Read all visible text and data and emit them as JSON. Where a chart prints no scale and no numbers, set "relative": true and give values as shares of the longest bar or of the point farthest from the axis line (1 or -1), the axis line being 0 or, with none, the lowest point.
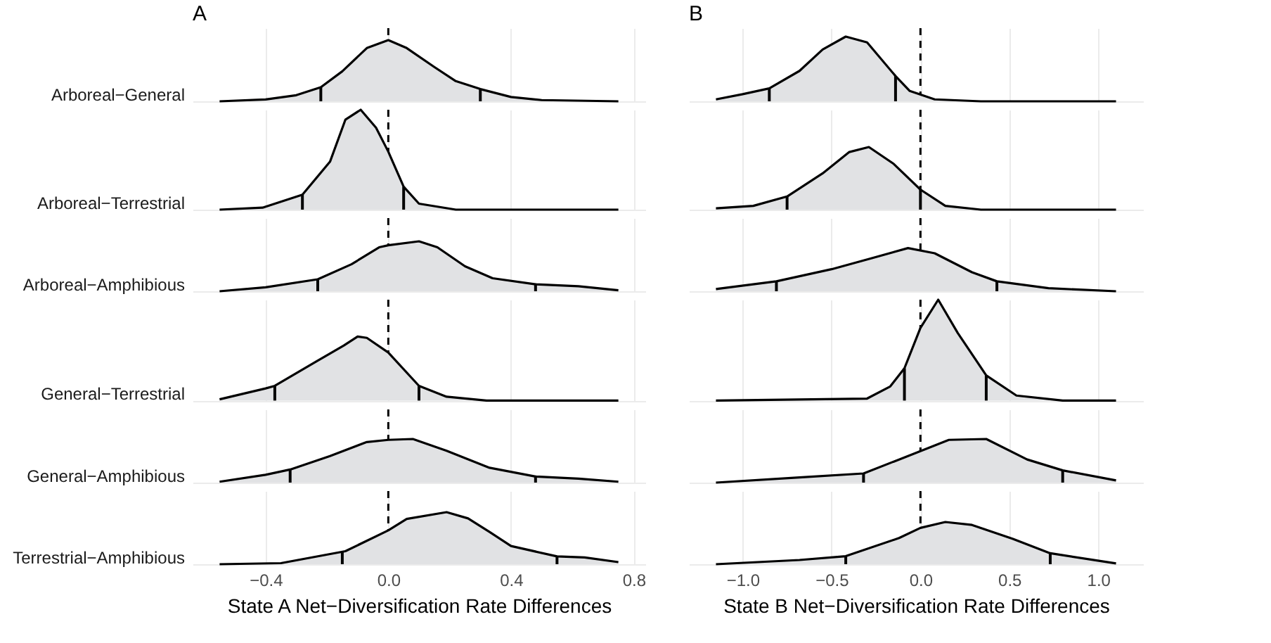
{
  "chart_data": [
    {
      "type": "area",
      "relative": true,
      "title": "A",
      "xlim": [
        -0.615,
        0.815
      ],
      "xticks": [
        -0.4,
        0,
        0.4,
        0.8
      ],
      "tick_labels": false,
      "grid": true,
      "legend": false,
      "ref_lines": [
        {
          "axis": "x",
          "value": 0,
          "label": null,
          "line_style": "dashed",
          "color": "#000000"
        }
      ],
      "series": [
        {
          "name": "Arboreal−General",
          "color": "#e1e2e4",
          "x": [
            -0.55,
            -0.4,
            -0.3,
            -0.22,
            -0.15,
            -0.07,
            0,
            0.06,
            0.15,
            0.22,
            0.3,
            0.4,
            0.5,
            0.75
          ],
          "values": [
            0,
            0.03,
            0.1,
            0.23,
            0.49,
            0.87,
            1,
            0.87,
            0.56,
            0.33,
            0.2,
            0.07,
            0.02,
            0
          ]
        },
        {
          "type": "bar",
          "color": "#000000",
          "x": [
            -0.22,
            0.3
          ],
          "values": [
            0.23,
            0.2
          ]
        }
      ]
    },
    {
      "type": "area",
      "relative": true,
      "xlim": [
        -0.615,
        0.815
      ],
      "xticks": [
        -0.4,
        0,
        0.4,
        0.8
      ],
      "tick_labels": false,
      "grid": true,
      "legend": false,
      "ref_lines": [
        {
          "axis": "x",
          "value": 0,
          "label": null,
          "line_style": "dashed",
          "color": "#000000"
        }
      ],
      "series": [
        {
          "name": "Arboreal−Terrestrial",
          "color": "#e1e2e4",
          "x": [
            -0.55,
            -0.41,
            -0.28,
            -0.19,
            -0.14,
            -0.09,
            -0.04,
            0,
            0.05,
            0.1,
            0.22,
            0.75
          ],
          "values": [
            0,
            0.02,
            0.15,
            0.48,
            0.9,
            1,
            0.82,
            0.58,
            0.23,
            0.06,
            0,
            0
          ]
        },
        {
          "type": "bar",
          "color": "#000000",
          "x": [
            -0.28,
            0.05
          ],
          "values": [
            0.15,
            0.23
          ]
        }
      ]
    },
    {
      "type": "area",
      "relative": true,
      "xlim": [
        -0.615,
        0.815
      ],
      "xticks": [
        -0.4,
        0,
        0.4,
        0.8
      ],
      "tick_labels": false,
      "grid": true,
      "legend": false,
      "ref_lines": [
        {
          "axis": "x",
          "value": 0,
          "label": null,
          "line_style": "dashed",
          "color": "#000000"
        }
      ],
      "series": [
        {
          "name": "Arboreal−Amphibious",
          "color": "#e1e2e4",
          "x": [
            -0.55,
            -0.4,
            -0.23,
            -0.12,
            -0.03,
            0,
            0.1,
            0.16,
            0.25,
            0.34,
            0.48,
            0.62,
            0.75
          ],
          "values": [
            0,
            0.08,
            0.24,
            0.54,
            0.88,
            0.92,
            1,
            0.88,
            0.5,
            0.26,
            0.14,
            0.1,
            0.02
          ]
        },
        {
          "type": "bar",
          "color": "#000000",
          "x": [
            -0.23,
            0.48
          ],
          "values": [
            0.24,
            0.14
          ]
        }
      ]
    },
    {
      "type": "area",
      "relative": true,
      "xlim": [
        -0.615,
        0.815
      ],
      "xticks": [
        -0.4,
        0,
        0.4,
        0.8
      ],
      "tick_labels": false,
      "grid": true,
      "legend": false,
      "ref_lines": [
        {
          "axis": "x",
          "value": 0,
          "label": null,
          "line_style": "dashed",
          "color": "#000000"
        }
      ],
      "series": [
        {
          "name": "General−Terrestrial",
          "color": "#e1e2e4",
          "x": [
            -0.55,
            -0.4,
            -0.37,
            -0.235,
            -0.145,
            -0.1,
            -0.07,
            0,
            0.1,
            0.19,
            0.32,
            0.75
          ],
          "values": [
            0.02,
            0.19,
            0.23,
            0.61,
            0.86,
            1,
            0.98,
            0.75,
            0.23,
            0.06,
            0,
            0
          ]
        },
        {
          "type": "bar",
          "color": "#000000",
          "x": [
            -0.37,
            0.1
          ],
          "values": [
            0.23,
            0.23
          ]
        }
      ]
    },
    {
      "type": "area",
      "relative": true,
      "xlim": [
        -0.615,
        0.815
      ],
      "xticks": [
        -0.4,
        0,
        0.4,
        0.8
      ],
      "tick_labels": false,
      "grid": true,
      "legend": false,
      "ref_lines": [
        {
          "axis": "x",
          "value": 0,
          "label": null,
          "line_style": "dashed",
          "color": "#000000"
        }
      ],
      "series": [
        {
          "name": "General−Amphibious",
          "color": "#e1e2e4",
          "x": [
            -0.55,
            -0.4,
            -0.32,
            -0.19,
            -0.07,
            0,
            0.08,
            0.19,
            0.33,
            0.48,
            0.62,
            0.75
          ],
          "values": [
            0.02,
            0.18,
            0.3,
            0.61,
            0.93,
            0.98,
            1,
            0.73,
            0.34,
            0.14,
            0.09,
            0.02
          ]
        },
        {
          "type": "bar",
          "color": "#000000",
          "x": [
            -0.32,
            0.48
          ],
          "values": [
            0.3,
            0.14
          ]
        }
      ]
    },
    {
      "type": "area",
      "relative": true,
      "xlabel": "State A Net−Diversification Rate Differences",
      "xlim": [
        -0.615,
        0.815
      ],
      "xticks": [
        {
          "value": -0.4,
          "label": "−0.4"
        },
        {
          "value": 0,
          "label": "0.0"
        },
        {
          "value": 0.4,
          "label": "0.4"
        },
        {
          "value": 0.8,
          "label": "0.8"
        }
      ],
      "tick_labels": "x",
      "grid": true,
      "legend": false,
      "ref_lines": [
        {
          "axis": "x",
          "value": 0,
          "label": null,
          "line_style": "dashed",
          "color": "#000000"
        }
      ],
      "series": [
        {
          "name": "Terrestrial−Amphibious",
          "color": "#e1e2e4",
          "x": [
            -0.55,
            -0.35,
            -0.14,
            0,
            0.06,
            0.19,
            0.26,
            0.33,
            0.4,
            0.55,
            0.64,
            0.75
          ],
          "values": [
            0,
            0.02,
            0.25,
            0.65,
            0.87,
            1,
            0.88,
            0.62,
            0.35,
            0.15,
            0.13,
            0.04
          ]
        },
        {
          "type": "bar",
          "color": "#000000",
          "x": [
            -0.15,
            0.55
          ],
          "values": [
            0.23,
            0.15
          ]
        }
      ]
    },
    {
      "type": "area",
      "relative": true,
      "title": "B",
      "xlim": [
        -1.2625,
        1.2125
      ],
      "xticks": [
        -1,
        -0.5,
        0,
        0.5,
        1
      ],
      "tick_labels": false,
      "grid": true,
      "legend": false,
      "ref_lines": [
        {
          "axis": "x",
          "value": 0,
          "label": null,
          "line_style": "dashed",
          "color": "#000000"
        }
      ],
      "series": [
        {
          "color": "#e1e2e4",
          "x": [
            -1.15,
            -1,
            -0.85,
            -0.68,
            -0.55,
            -0.42,
            -0.3,
            -0.14,
            -0.06,
            0.08,
            0.34,
            1.1
          ],
          "values": [
            0.03,
            0.11,
            0.2,
            0.47,
            0.8,
            1,
            0.91,
            0.39,
            0.16,
            0.03,
            0,
            0
          ]
        },
        {
          "type": "bar",
          "color": "#000000",
          "x": [
            -0.85,
            -0.14
          ],
          "values": [
            0.2,
            0.39
          ]
        }
      ]
    },
    {
      "type": "area",
      "relative": true,
      "xlim": [
        -1.2625,
        1.2125
      ],
      "xticks": [
        -1,
        -0.5,
        0,
        0.5,
        1
      ],
      "tick_labels": false,
      "grid": true,
      "legend": false,
      "ref_lines": [
        {
          "axis": "x",
          "value": 0,
          "label": null,
          "line_style": "dashed",
          "color": "#000000"
        }
      ],
      "series": [
        {
          "color": "#e1e2e4",
          "x": [
            -1.15,
            -0.94,
            -0.75,
            -0.55,
            -0.4,
            -0.29,
            -0.15,
            0,
            0.14,
            0.34,
            1.1
          ],
          "values": [
            0.02,
            0.06,
            0.21,
            0.58,
            0.92,
            1,
            0.73,
            0.32,
            0.06,
            0,
            0
          ]
        },
        {
          "type": "bar",
          "color": "#000000",
          "x": [
            -0.75,
            0
          ],
          "values": [
            0.21,
            0.32
          ]
        }
      ]
    },
    {
      "type": "area",
      "relative": true,
      "xlim": [
        -1.2625,
        1.2125
      ],
      "xticks": [
        -1,
        -0.5,
        0,
        0.5,
        1
      ],
      "tick_labels": false,
      "grid": true,
      "legend": false,
      "ref_lines": [
        {
          "axis": "x",
          "value": 0,
          "label": null,
          "line_style": "dashed",
          "color": "#000000"
        }
      ],
      "series": [
        {
          "color": "#e1e2e4",
          "x": [
            -1.15,
            -0.81,
            -0.5,
            -0.27,
            -0.07,
            0.08,
            0.29,
            0.43,
            0.72,
            1.1
          ],
          "values": [
            0.05,
            0.23,
            0.51,
            0.77,
            1,
            0.88,
            0.44,
            0.23,
            0.07,
            0
          ]
        },
        {
          "type": "bar",
          "color": "#000000",
          "x": [
            -0.81,
            0.43
          ],
          "values": [
            0.23,
            0.23
          ]
        }
      ]
    },
    {
      "type": "area",
      "relative": true,
      "xlim": [
        -1.2625,
        1.2125
      ],
      "xticks": [
        -1,
        -0.5,
        0,
        0.5,
        1
      ],
      "tick_labels": false,
      "grid": true,
      "legend": false,
      "ref_lines": [
        {
          "axis": "x",
          "value": 0,
          "label": null,
          "line_style": "dashed",
          "color": "#000000"
        }
      ],
      "series": [
        {
          "color": "#e1e2e4",
          "x": [
            -1.15,
            -0.3,
            -0.17,
            -0.09,
            0,
            0.1,
            0.21,
            0.37,
            0.54,
            0.8,
            1.1
          ],
          "values": [
            0,
            0.02,
            0.14,
            0.32,
            0.72,
            1,
            0.67,
            0.25,
            0.05,
            0,
            0
          ]
        },
        {
          "type": "bar",
          "color": "#000000",
          "x": [
            -0.09,
            0.37
          ],
          "values": [
            0.32,
            0.25
          ]
        }
      ]
    },
    {
      "type": "area",
      "relative": true,
      "xlim": [
        -1.2625,
        1.2125
      ],
      "xticks": [
        -1,
        -0.5,
        0,
        0.5,
        1
      ],
      "tick_labels": false,
      "grid": true,
      "legend": false,
      "ref_lines": [
        {
          "axis": "x",
          "value": 0,
          "label": null,
          "line_style": "dashed",
          "color": "#000000"
        }
      ],
      "series": [
        {
          "color": "#e1e2e4",
          "x": [
            -1.15,
            -0.68,
            -0.32,
            -0.12,
            0.16,
            0.37,
            0.6,
            0.8,
            1.1
          ],
          "values": [
            0,
            0.12,
            0.21,
            0.53,
            0.98,
            1,
            0.53,
            0.28,
            0.05
          ]
        },
        {
          "type": "bar",
          "color": "#000000",
          "x": [
            -0.32,
            0.8
          ],
          "values": [
            0.21,
            0.28
          ]
        }
      ]
    },
    {
      "type": "area",
      "relative": true,
      "xlabel": "State B Net−Diversification Rate Differences",
      "xlim": [
        -1.2625,
        1.2125
      ],
      "xticks": [
        {
          "value": -1,
          "label": "−1.0"
        },
        {
          "value": -0.5,
          "label": "−0.5"
        },
        {
          "value": 0,
          "label": "0.0"
        },
        {
          "value": 0.5,
          "label": "0.5"
        },
        {
          "value": 1,
          "label": "1.0"
        }
      ],
      "tick_labels": "x",
      "grid": true,
      "legend": false,
      "ref_lines": [
        {
          "axis": "x",
          "value": 0,
          "label": null,
          "line_style": "dashed",
          "color": "#000000"
        }
      ],
      "series": [
        {
          "color": "#e1e2e4",
          "x": [
            -1.15,
            -0.68,
            -0.42,
            -0.12,
            0,
            0.14,
            0.29,
            0.52,
            0.73,
            1.1
          ],
          "values": [
            0,
            0.1,
            0.19,
            0.62,
            0.86,
            1,
            0.93,
            0.6,
            0.26,
            0.02
          ]
        },
        {
          "type": "bar",
          "color": "#000000",
          "x": [
            -0.42,
            0.73
          ],
          "values": [
            0.19,
            0.26
          ]
        }
      ]
    }
  ]
}
